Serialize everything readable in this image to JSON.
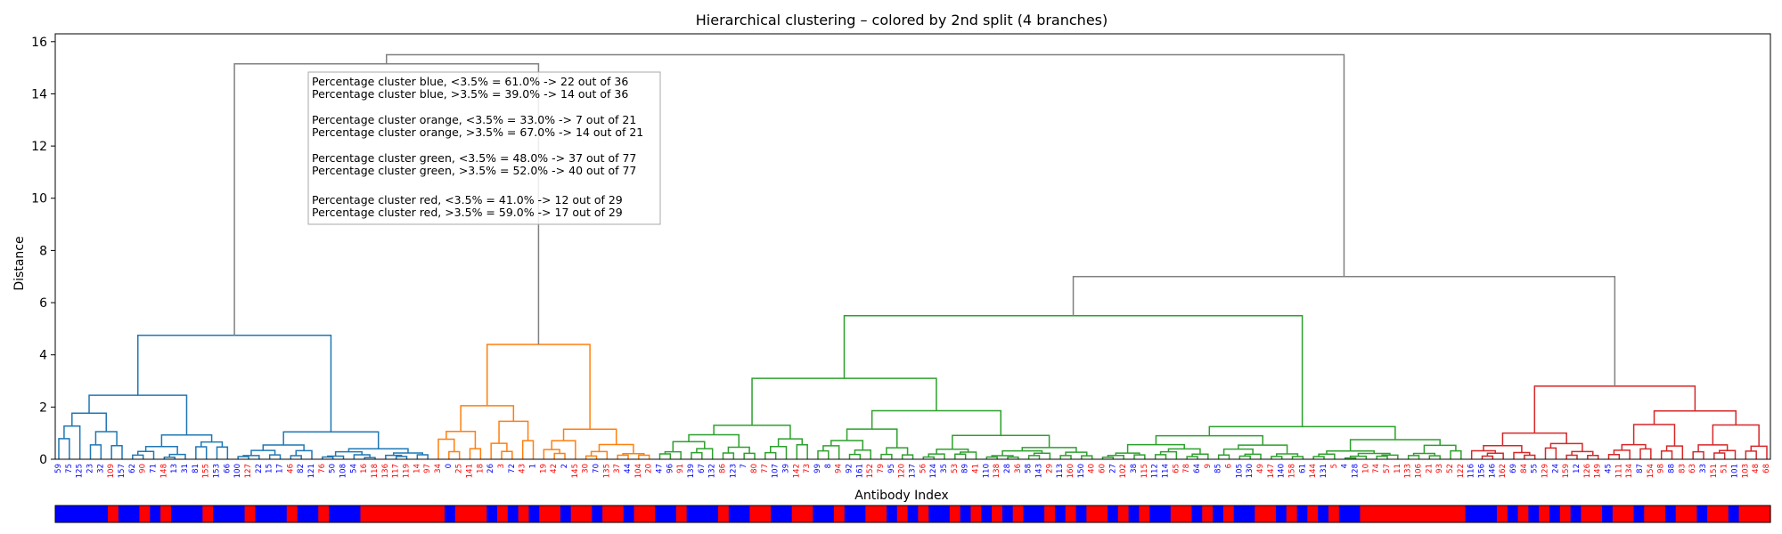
{
  "chart_data": {
    "type": "dendrogram",
    "title": "Hierarchical clustering – colored by 2nd split (4 branches)",
    "xlabel": "Antibody Index",
    "ylabel": "Distance",
    "ylim": [
      0,
      16.3
    ],
    "yticks": [
      0,
      2,
      4,
      6,
      8,
      10,
      12,
      14,
      16
    ],
    "colors": {
      "blue": "#1f77b4",
      "orange": "#ff7f0e",
      "green": "#2ca02c",
      "red": "#d62728",
      "above": "#808080",
      "label_low": "#0000ff",
      "label_high": "#ff0000"
    },
    "clusters": [
      {
        "name": "blue",
        "start": 0,
        "count": 36,
        "height": 4.75,
        "subs": [
          {
            "height": 2.45,
            "count": 17
          },
          {
            "height": 1.05,
            "count": 19
          }
        ],
        "lows": [
          0,
          1,
          2,
          3,
          4,
          6,
          7,
          9,
          11,
          12,
          13,
          15,
          16,
          17,
          19,
          20,
          21,
          23,
          24,
          26,
          27,
          28
        ]
      },
      {
        "name": "orange",
        "start": 36,
        "count": 21,
        "height": 4.4,
        "subs": [
          {
            "height": 2.05,
            "count": 10
          },
          {
            "height": 1.15,
            "count": 11
          }
        ],
        "lows": [
          1,
          5,
          7,
          9,
          12,
          15,
          18
        ]
      },
      {
        "name": "green",
        "start": 57,
        "count": 77,
        "height": 5.5,
        "subs": [
          {
            "height": 3.1,
            "count": 42
          },
          {
            "height": 1.25,
            "count": 35
          }
        ],
        "lows": [
          0,
          1,
          3,
          4,
          5,
          7,
          8,
          11,
          12,
          15,
          16,
          18,
          19,
          22,
          24,
          26,
          27,
          29,
          31,
          33,
          35,
          36,
          38,
          40,
          43,
          45,
          47,
          48,
          51,
          53,
          55,
          56,
          59,
          61,
          63,
          65,
          66
        ]
      },
      {
        "name": "red",
        "start": 134,
        "count": 29,
        "height": 2.8,
        "subs": [
          {
            "height": 1.0,
            "count": 13
          },
          {
            "height": 1.85,
            "count": 16
          }
        ],
        "lows": [
          0,
          1,
          2,
          4,
          6,
          8,
          10,
          13,
          16,
          19,
          22,
          25
        ]
      }
    ],
    "upper_merges": {
      "blue_orange": 15.15,
      "green_red": 7.0,
      "root": 15.5
    },
    "leaf_labels": [
      "59",
      "75",
      "125",
      "23",
      "32",
      "109",
      "157",
      "62",
      "90",
      "71",
      "148",
      "13",
      "31",
      "81",
      "155",
      "153",
      "66",
      "100",
      "127",
      "22",
      "15",
      "17",
      "46",
      "82",
      "121",
      "76",
      "50",
      "108",
      "54",
      "16",
      "118",
      "136",
      "117",
      "119",
      "14",
      "97",
      "34",
      "0",
      "25",
      "141",
      "18",
      "26",
      "3",
      "72",
      "43",
      "1",
      "19",
      "42",
      "2",
      "145",
      "30",
      "70",
      "135",
      "37",
      "44",
      "104",
      "20",
      "47",
      "96",
      "91",
      "139",
      "67",
      "132",
      "86",
      "123",
      "7",
      "80",
      "77",
      "107",
      "39",
      "142",
      "73",
      "99",
      "8",
      "94",
      "92",
      "161",
      "152",
      "79",
      "95",
      "120",
      "137",
      "56",
      "124",
      "35",
      "53",
      "89",
      "41",
      "110",
      "138",
      "28",
      "36",
      "58",
      "143",
      "29",
      "113",
      "160",
      "150",
      "40",
      "60",
      "27",
      "102",
      "38",
      "115",
      "112",
      "114",
      "65",
      "78",
      "64",
      "9",
      "85",
      "6",
      "105",
      "130",
      "49",
      "147",
      "140",
      "158",
      "61",
      "144",
      "131",
      "5",
      "4",
      "128",
      "10",
      "74",
      "57",
      "11",
      "133",
      "106",
      "21",
      "93",
      "52",
      "122",
      "116",
      "156",
      "146",
      "162",
      "69",
      "84",
      "55",
      "129",
      "24",
      "159",
      "12",
      "126",
      "149",
      "45",
      "111",
      "134",
      "87",
      "154",
      "98",
      "88",
      "83",
      "63",
      "33",
      "151",
      "51",
      "101",
      "103",
      "48",
      "68"
    ],
    "legend": "",
    "annotation": {
      "lines": [
        "Percentage cluster blue, <3.5% = 61.0%  -> 22  out of 36",
        "Percentage cluster blue, >3.5% = 39.0%  -> 14  out of 36",
        "",
        "Percentage cluster orange, <3.5% = 33.0%  -> 7  out of 21",
        "Percentage cluster orange, >3.5% = 67.0%  -> 14  out of 21",
        "",
        "Percentage cluster green, <3.5% = 48.0%  -> 37  out of 77",
        "Percentage cluster green, >3.5% = 52.0%  -> 40  out of 77",
        "",
        "Percentage cluster red, <3.5% = 41.0%  -> 12  out of 29",
        "Percentage cluster red, >3.5% = 59.0%  -> 17  out of 29"
      ]
    }
  }
}
